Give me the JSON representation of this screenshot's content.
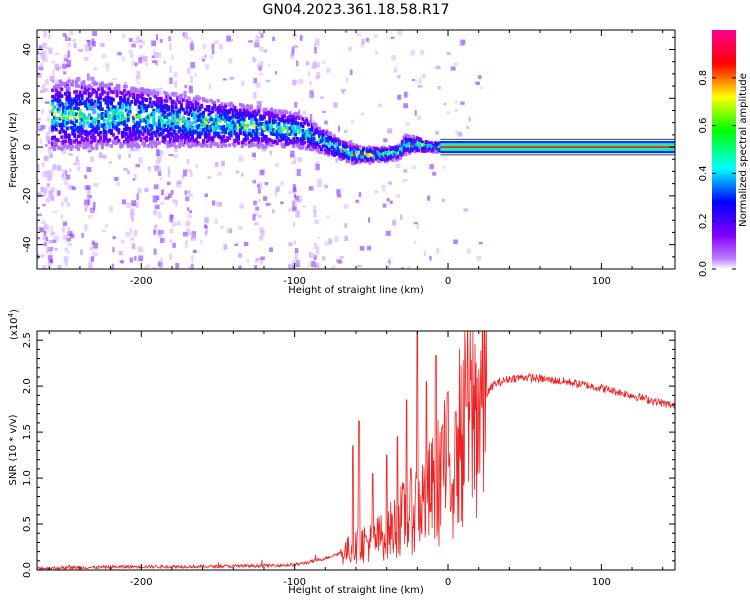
{
  "title": "GN04.2023.361.18.58.R17",
  "chart_data": [
    {
      "type": "heatmap",
      "xlabel": "Height of straight line (km)",
      "ylabel": "Frequency (Hz)",
      "xlim": [
        -268,
        148
      ],
      "ylim": [
        -50,
        48
      ],
      "xticks": [
        -200,
        -100,
        0,
        100
      ],
      "yticks": [
        -40,
        -20,
        0,
        20,
        40
      ],
      "colorbar": {
        "label": "Normalized spectral amplitude",
        "range": [
          0,
          1
        ],
        "ticks": [
          "0.0",
          "0.2",
          "0.4",
          "0.6",
          "0.8"
        ],
        "colormap": [
          "#ff00ff",
          "#8000ff",
          "#0000ff",
          "#00ffff",
          "#00ff00",
          "#ffff00",
          "#ff0000",
          "#ff0080"
        ]
      },
      "ridge": {
        "x": [
          -258,
          -240,
          -220,
          -200,
          -180,
          -160,
          -140,
          -120,
          -100,
          -90,
          -80,
          -70,
          -62,
          -55,
          -48,
          -40,
          -32,
          -28,
          -20,
          -12,
          -5,
          0,
          50,
          148
        ],
        "freq": [
          13,
          13,
          13,
          12,
          11,
          10,
          9,
          8,
          7,
          5,
          2,
          -1,
          -3,
          -3,
          -3,
          -3,
          -2,
          1,
          1,
          0,
          0,
          0,
          0,
          0
        ],
        "width": [
          14,
          14,
          13,
          12,
          11,
          10,
          9,
          8,
          7,
          6,
          5,
          4,
          4,
          3,
          3,
          3,
          3,
          4,
          3,
          2,
          2,
          2,
          2,
          2
        ]
      }
    },
    {
      "type": "line",
      "xlabel": "Height of straight line (km)",
      "ylabel": "SNR (10 * v/v)",
      "y_multiplier": "(x10",
      "y_multiplier_exp": "4",
      "xlim": [
        -268,
        148
      ],
      "ylim": [
        0,
        2.6
      ],
      "xticks": [
        -200,
        -100,
        0,
        100
      ],
      "yticks": [
        "0.0",
        "0.5",
        "1.0",
        "1.5",
        "2.0",
        "2.5"
      ],
      "series_color": "#ee2222",
      "envelope": {
        "x": [
          -268,
          -240,
          -200,
          -160,
          -120,
          -100,
          -90,
          -80,
          -70,
          -60,
          -55,
          -50,
          -40,
          -30,
          -20,
          -10,
          0,
          10,
          20,
          30,
          40,
          50,
          60,
          80,
          100,
          120,
          148
        ],
        "y": [
          0.01,
          0.02,
          0.03,
          0.03,
          0.04,
          0.05,
          0.08,
          0.12,
          0.18,
          0.25,
          0.3,
          0.3,
          0.4,
          0.55,
          0.7,
          0.85,
          1.15,
          1.5,
          1.8,
          2.02,
          2.08,
          2.1,
          2.08,
          2.04,
          1.98,
          1.9,
          1.78
        ]
      },
      "spikes": [
        {
          "x": -62,
          "y": 1.35
        },
        {
          "x": -58,
          "y": 1.62
        },
        {
          "x": -49,
          "y": 1.05
        },
        {
          "x": -40,
          "y": 1.25
        },
        {
          "x": -33,
          "y": 1.45
        },
        {
          "x": -27,
          "y": 1.85
        },
        {
          "x": -20,
          "y": 2.62
        },
        {
          "x": -14,
          "y": 2.05
        },
        {
          "x": -8,
          "y": 2.33
        },
        {
          "x": -4,
          "y": 1.55
        },
        {
          "x": 5,
          "y": 1.72
        },
        {
          "x": 12,
          "y": 1.78
        }
      ]
    }
  ]
}
